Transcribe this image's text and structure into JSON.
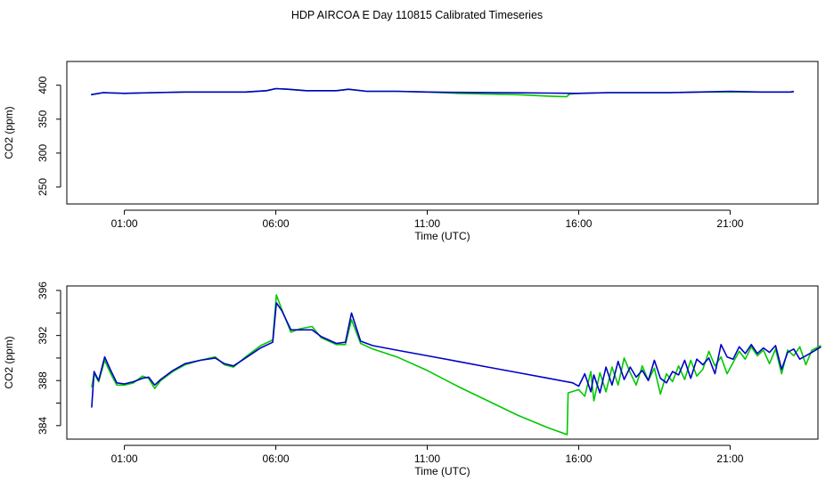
{
  "title": "HDP AIRCOA E  Day 110815  Calibrated Timeseries",
  "colors": {
    "series_green": "#00c800",
    "series_blue": "#0000c8",
    "axes": "#000000"
  },
  "chart_data": [
    {
      "type": "line",
      "title": "",
      "xlabel": "Time (UTC)",
      "ylabel": "CO2 (ppm)",
      "xlim": [
        -0.9,
        23.9
      ],
      "ylim": [
        225,
        435
      ],
      "xtick_values": [
        1,
        6,
        11,
        16,
        21
      ],
      "xtick_labels": [
        "01:00",
        "06:00",
        "11:00",
        "16:00",
        "21:00"
      ],
      "ytick_values": [
        250,
        300,
        350,
        400
      ],
      "ytick_labels": [
        "250",
        "300",
        "350",
        "400"
      ],
      "grid": false,
      "legend": "none",
      "series": [
        {
          "color": "#00c800",
          "points": [
            [
              -0.1,
              386
            ],
            [
              0.3,
              389
            ],
            [
              1,
              388
            ],
            [
              2,
              389
            ],
            [
              3,
              390
            ],
            [
              4,
              390
            ],
            [
              5,
              390
            ],
            [
              5.7,
              392
            ],
            [
              6,
              395
            ],
            [
              6.4,
              394
            ],
            [
              7,
              392
            ],
            [
              8,
              392
            ],
            [
              8.4,
              394
            ],
            [
              9,
              391
            ],
            [
              10,
              391
            ],
            [
              11,
              390
            ],
            [
              12,
              388
            ],
            [
              13,
              387
            ],
            [
              14,
              386
            ],
            [
              15,
              384
            ],
            [
              15.6,
              383
            ],
            [
              15.7,
              387
            ],
            [
              16,
              388
            ],
            [
              17,
              389
            ],
            [
              18,
              389
            ],
            [
              19,
              389
            ],
            [
              20,
              390
            ],
            [
              21,
              390
            ],
            [
              22,
              390
            ],
            [
              23,
              390
            ],
            [
              23.1,
              390
            ]
          ]
        },
        {
          "color": "#0000c8",
          "points": [
            [
              -0.1,
              386
            ],
            [
              0.3,
              389
            ],
            [
              1,
              388
            ],
            [
              2,
              389
            ],
            [
              3,
              390
            ],
            [
              4,
              390
            ],
            [
              5,
              390
            ],
            [
              5.7,
              392
            ],
            [
              6,
              395
            ],
            [
              6.4,
              394
            ],
            [
              7,
              392
            ],
            [
              8,
              392
            ],
            [
              8.4,
              394
            ],
            [
              9,
              391
            ],
            [
              10,
              391
            ],
            [
              11,
              390
            ],
            [
              12,
              389.5
            ],
            [
              13,
              389.2
            ],
            [
              14,
              388.8
            ],
            [
              15,
              388.4
            ],
            [
              15.8,
              388
            ],
            [
              16,
              388
            ],
            [
              17,
              389
            ],
            [
              18,
              389
            ],
            [
              19,
              389
            ],
            [
              20,
              390
            ],
            [
              21,
              391
            ],
            [
              22,
              390
            ],
            [
              23,
              390
            ],
            [
              23.1,
              391
            ]
          ]
        }
      ]
    },
    {
      "type": "line",
      "title": "",
      "xlabel": "Time (UTC)",
      "ylabel": "CO2 (ppm)",
      "xlim": [
        -0.9,
        23.9
      ],
      "ylim": [
        382.8,
        396.4
      ],
      "xtick_values": [
        1,
        6,
        11,
        16,
        21
      ],
      "xtick_labels": [
        "01:00",
        "06:00",
        "11:00",
        "16:00",
        "21:00"
      ],
      "ytick_values": [
        384,
        386,
        388,
        390,
        392,
        394,
        396
      ],
      "ytick_labels": [
        "384",
        "",
        "388",
        "",
        "392",
        "",
        "396"
      ],
      "grid": false,
      "legend": "none",
      "series": [
        {
          "color": "#00c800",
          "points": [
            [
              -0.08,
              387.4
            ],
            [
              0,
              388.6
            ],
            [
              0.15,
              387.9
            ],
            [
              0.35,
              389.8
            ],
            [
              0.55,
              388.6
            ],
            [
              0.75,
              387.6
            ],
            [
              1,
              387.6
            ],
            [
              1.3,
              387.8
            ],
            [
              1.6,
              388.4
            ],
            [
              1.8,
              388.2
            ],
            [
              2,
              387.3
            ],
            [
              2.2,
              388.0
            ],
            [
              2.6,
              388.8
            ],
            [
              3,
              389.4
            ],
            [
              3.5,
              389.8
            ],
            [
              4,
              390.1
            ],
            [
              4.3,
              389.4
            ],
            [
              4.6,
              389.2
            ],
            [
              5,
              390.1
            ],
            [
              5.5,
              391.1
            ],
            [
              5.9,
              391.6
            ],
            [
              6.02,
              395.6
            ],
            [
              6.2,
              394.3
            ],
            [
              6.5,
              392.3
            ],
            [
              6.8,
              392.6
            ],
            [
              7.2,
              392.8
            ],
            [
              7.5,
              391.8
            ],
            [
              8,
              391.2
            ],
            [
              8.3,
              391.2
            ],
            [
              8.5,
              393.4
            ],
            [
              8.8,
              391.3
            ],
            [
              9.2,
              390.8
            ],
            [
              10,
              390.1
            ],
            [
              11,
              388.9
            ],
            [
              12,
              387.5
            ],
            [
              13,
              386.2
            ],
            [
              14,
              384.9
            ],
            [
              15,
              383.8
            ],
            [
              15.62,
              383.2
            ],
            [
              15.65,
              386.9
            ],
            [
              16,
              387.2
            ],
            [
              16.2,
              386.6
            ],
            [
              16.4,
              388.8
            ],
            [
              16.5,
              386.2
            ],
            [
              16.7,
              388.7
            ],
            [
              16.9,
              387.0
            ],
            [
              17.1,
              389.2
            ],
            [
              17.3,
              387.6
            ],
            [
              17.5,
              390.0
            ],
            [
              17.7,
              388.7
            ],
            [
              17.9,
              387.6
            ],
            [
              18.1,
              389.3
            ],
            [
              18.3,
              388.0
            ],
            [
              18.5,
              389.1
            ],
            [
              18.7,
              386.8
            ],
            [
              18.9,
              388.6
            ],
            [
              19.1,
              387.9
            ],
            [
              19.3,
              389.3
            ],
            [
              19.5,
              388.1
            ],
            [
              19.7,
              389.8
            ],
            [
              19.9,
              388.4
            ],
            [
              20.1,
              389.0
            ],
            [
              20.3,
              390.6
            ],
            [
              20.5,
              389.3
            ],
            [
              20.7,
              390.1
            ],
            [
              20.9,
              388.6
            ],
            [
              21.1,
              389.6
            ],
            [
              21.3,
              390.6
            ],
            [
              21.5,
              389.9
            ],
            [
              21.7,
              391.0
            ],
            [
              21.9,
              390.2
            ],
            [
              22.1,
              390.7
            ],
            [
              22.3,
              389.5
            ],
            [
              22.5,
              390.8
            ],
            [
              22.7,
              388.6
            ],
            [
              22.9,
              390.7
            ],
            [
              23.1,
              390.2
            ],
            [
              23.3,
              391.0
            ],
            [
              23.5,
              389.4
            ],
            [
              23.7,
              390.7
            ],
            [
              24.0,
              391.1
            ]
          ]
        },
        {
          "color": "#0000c8",
          "points": [
            [
              -0.08,
              385.6
            ],
            [
              0,
              388.8
            ],
            [
              0.15,
              388.0
            ],
            [
              0.35,
              390.1
            ],
            [
              0.55,
              388.9
            ],
            [
              0.75,
              387.8
            ],
            [
              1,
              387.7
            ],
            [
              1.3,
              387.9
            ],
            [
              1.6,
              388.2
            ],
            [
              1.8,
              388.3
            ],
            [
              2,
              387.6
            ],
            [
              2.2,
              388.1
            ],
            [
              2.6,
              388.9
            ],
            [
              3,
              389.5
            ],
            [
              3.5,
              389.8
            ],
            [
              4,
              390.0
            ],
            [
              4.3,
              389.5
            ],
            [
              4.6,
              389.3
            ],
            [
              5,
              390.0
            ],
            [
              5.5,
              390.9
            ],
            [
              5.9,
              391.4
            ],
            [
              6.02,
              394.9
            ],
            [
              6.2,
              394.2
            ],
            [
              6.5,
              392.5
            ],
            [
              6.8,
              392.5
            ],
            [
              7.2,
              392.5
            ],
            [
              7.5,
              391.9
            ],
            [
              8,
              391.3
            ],
            [
              8.3,
              391.4
            ],
            [
              8.5,
              394.0
            ],
            [
              8.8,
              391.5
            ],
            [
              9.2,
              391.1
            ],
            [
              10,
              390.7
            ],
            [
              11,
              390.2
            ],
            [
              12,
              389.7
            ],
            [
              13,
              389.2
            ],
            [
              14,
              388.7
            ],
            [
              15,
              388.2
            ],
            [
              15.8,
              387.8
            ],
            [
              16,
              387.5
            ],
            [
              16.2,
              388.6
            ],
            [
              16.4,
              387.0
            ],
            [
              16.5,
              388.5
            ],
            [
              16.7,
              386.9
            ],
            [
              16.9,
              389.2
            ],
            [
              17.1,
              387.6
            ],
            [
              17.3,
              389.7
            ],
            [
              17.5,
              388.1
            ],
            [
              17.7,
              389.2
            ],
            [
              17.9,
              388.3
            ],
            [
              18.1,
              388.9
            ],
            [
              18.3,
              388.0
            ],
            [
              18.5,
              389.8
            ],
            [
              18.7,
              388.2
            ],
            [
              18.9,
              387.8
            ],
            [
              19.1,
              388.8
            ],
            [
              19.3,
              388.5
            ],
            [
              19.5,
              389.8
            ],
            [
              19.7,
              388.2
            ],
            [
              19.9,
              389.9
            ],
            [
              20.1,
              389.4
            ],
            [
              20.3,
              390.0
            ],
            [
              20.5,
              388.6
            ],
            [
              20.7,
              391.2
            ],
            [
              20.9,
              390.1
            ],
            [
              21.1,
              389.9
            ],
            [
              21.3,
              391.0
            ],
            [
              21.5,
              390.4
            ],
            [
              21.7,
              391.2
            ],
            [
              21.9,
              390.4
            ],
            [
              22.1,
              390.9
            ],
            [
              22.3,
              390.5
            ],
            [
              22.5,
              391.1
            ],
            [
              22.7,
              389.0
            ],
            [
              22.9,
              390.5
            ],
            [
              23.1,
              390.8
            ],
            [
              23.3,
              389.9
            ],
            [
              23.5,
              390.2
            ],
            [
              23.7,
              390.5
            ],
            [
              24.0,
              391.0
            ]
          ]
        }
      ]
    }
  ]
}
